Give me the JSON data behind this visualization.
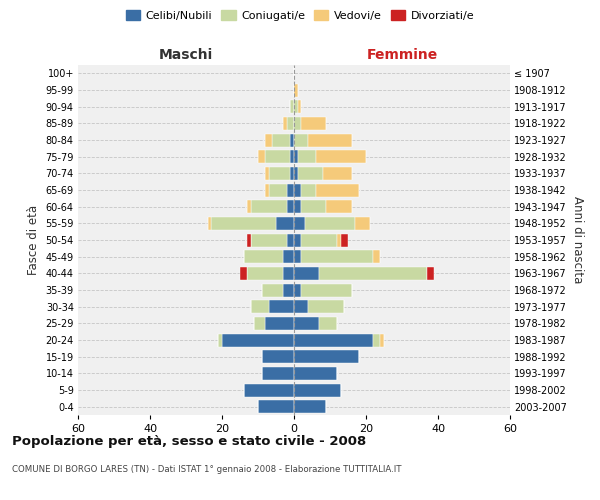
{
  "age_groups": [
    "0-4",
    "5-9",
    "10-14",
    "15-19",
    "20-24",
    "25-29",
    "30-34",
    "35-39",
    "40-44",
    "45-49",
    "50-54",
    "55-59",
    "60-64",
    "65-69",
    "70-74",
    "75-79",
    "80-84",
    "85-89",
    "90-94",
    "95-99",
    "100+"
  ],
  "birth_years": [
    "2003-2007",
    "1998-2002",
    "1993-1997",
    "1988-1992",
    "1983-1987",
    "1978-1982",
    "1973-1977",
    "1968-1972",
    "1963-1967",
    "1958-1962",
    "1953-1957",
    "1948-1952",
    "1943-1947",
    "1938-1942",
    "1933-1937",
    "1928-1932",
    "1923-1927",
    "1918-1922",
    "1913-1917",
    "1908-1912",
    "≤ 1907"
  ],
  "male": {
    "celibi": [
      10,
      14,
      9,
      9,
      20,
      8,
      7,
      3,
      3,
      3,
      2,
      5,
      2,
      2,
      1,
      1,
      1,
      0,
      0,
      0,
      0
    ],
    "coniugati": [
      0,
      0,
      0,
      0,
      1,
      3,
      5,
      6,
      10,
      11,
      10,
      18,
      10,
      5,
      6,
      7,
      5,
      2,
      1,
      0,
      0
    ],
    "vedovi": [
      0,
      0,
      0,
      0,
      0,
      0,
      0,
      0,
      0,
      0,
      0,
      1,
      1,
      1,
      1,
      2,
      2,
      1,
      0,
      0,
      0
    ],
    "divorziati": [
      0,
      0,
      0,
      0,
      0,
      0,
      0,
      0,
      2,
      0,
      1,
      0,
      0,
      0,
      0,
      0,
      0,
      0,
      0,
      0,
      0
    ]
  },
  "female": {
    "nubili": [
      9,
      13,
      12,
      18,
      22,
      7,
      4,
      2,
      7,
      2,
      2,
      3,
      2,
      2,
      1,
      1,
      0,
      0,
      0,
      0,
      0
    ],
    "coniugate": [
      0,
      0,
      0,
      0,
      2,
      5,
      10,
      14,
      30,
      20,
      10,
      14,
      7,
      4,
      7,
      5,
      4,
      2,
      1,
      0,
      0
    ],
    "vedove": [
      0,
      0,
      0,
      0,
      1,
      0,
      0,
      0,
      0,
      2,
      1,
      4,
      7,
      12,
      8,
      14,
      12,
      7,
      1,
      1,
      0
    ],
    "divorziate": [
      0,
      0,
      0,
      0,
      0,
      0,
      0,
      0,
      2,
      0,
      2,
      0,
      0,
      0,
      0,
      0,
      0,
      0,
      0,
      0,
      0
    ]
  },
  "colors": {
    "celibi": "#3A6EA5",
    "coniugati": "#C8D9A2",
    "vedovi": "#F5CA7A",
    "divorziati": "#CC2222"
  },
  "title": "Popolazione per età, sesso e stato civile - 2008",
  "subtitle": "COMUNE DI BORGO LARES (TN) - Dati ISTAT 1° gennaio 2008 - Elaborazione TUTTITALIA.IT",
  "xlabel_left": "Maschi",
  "xlabel_right": "Femmine",
  "ylabel_left": "Fasce di età",
  "ylabel_right": "Anni di nascita",
  "xlim": 60,
  "legend_labels": [
    "Celibi/Nubili",
    "Coniugati/e",
    "Vedovi/e",
    "Divorziati/e"
  ],
  "background_color": "#f0f0f0"
}
